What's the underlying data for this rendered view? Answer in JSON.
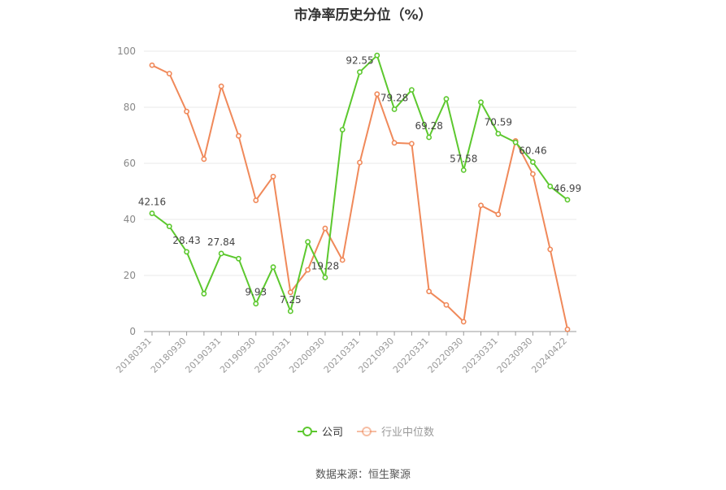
{
  "chart_data": {
    "type": "line",
    "title": "市净率历史分位（%）",
    "source": "数据来源：恒生聚源",
    "ylim": [
      0,
      100
    ],
    "yticks": [
      0,
      20,
      40,
      60,
      80,
      100
    ],
    "grid": true,
    "legend_position": "bottom",
    "x": [
      "20180331",
      "20180630",
      "20180930",
      "20181231",
      "20190331",
      "20190630",
      "20190930",
      "20191231",
      "20200331",
      "20200630",
      "20200930",
      "20201231",
      "20210331",
      "20210630",
      "20210930",
      "20211231",
      "20220331",
      "20220630",
      "20220930",
      "20221231",
      "20230331",
      "20230630",
      "20230930",
      "20231231",
      "20240422"
    ],
    "xtick_labels": [
      "20180331",
      "20180930",
      "20190331",
      "20190930",
      "20200331",
      "20200930",
      "20210331",
      "20210930",
      "20220331",
      "20220930",
      "20230331",
      "20230930",
      "20240422"
    ],
    "series": [
      {
        "name": "公司",
        "color": "#5cc82e",
        "values": [
          42.16,
          37.5,
          28.43,
          13.5,
          27.84,
          26.0,
          9.93,
          23.0,
          7.25,
          32.0,
          19.28,
          72.0,
          92.55,
          98.5,
          79.28,
          86.2,
          69.28,
          83.0,
          57.58,
          81.8,
          70.59,
          67.5,
          60.46,
          51.8,
          46.99
        ],
        "labels": [
          "42.16",
          "",
          "28.43",
          "",
          "27.84",
          "",
          "9.93",
          "",
          "7.25",
          "",
          "19.28",
          "",
          "92.55",
          "",
          "79.28",
          "",
          "69.28",
          "",
          "57.58",
          "",
          "70.59",
          "",
          "60.46",
          "",
          "46.99"
        ]
      },
      {
        "name": "行业中位数",
        "color": "#f0895a",
        "values": [
          95.0,
          92.0,
          78.5,
          61.5,
          87.5,
          69.8,
          46.8,
          55.3,
          14.0,
          22.0,
          36.8,
          25.5,
          60.3,
          84.7,
          67.3,
          67.0,
          14.3,
          9.5,
          3.5,
          45.0,
          41.8,
          68.0,
          56.2,
          29.3,
          0.8
        ]
      }
    ]
  }
}
